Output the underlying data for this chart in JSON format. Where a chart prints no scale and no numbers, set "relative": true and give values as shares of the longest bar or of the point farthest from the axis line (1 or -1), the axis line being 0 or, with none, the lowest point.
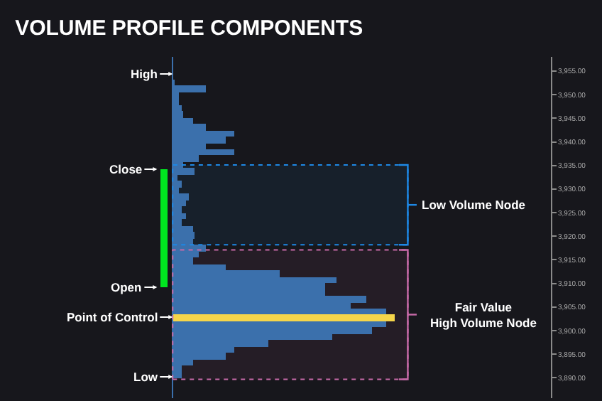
{
  "chart_data": {
    "type": "bar",
    "orientation": "horizontal",
    "relative": true,
    "title": "VOLUME PROFILE COMPONENTS",
    "x": [
      3952.6,
      3951.25,
      3949.9,
      3948.55,
      3947.2,
      3945.85,
      3944.5,
      3943.15,
      3941.8,
      3940.45,
      3939.1,
      3937.75,
      3936.4,
      3935.05,
      3933.7,
      3932.35,
      3931,
      3929.65,
      3928.3,
      3926.95,
      3925.6,
      3924.25,
      3922.9,
      3921.55,
      3920.2,
      3918.85,
      3917.5,
      3916.15,
      3914.8,
      3913.45,
      3912.1,
      3910.75,
      3909.4,
      3908.05,
      3906.7,
      3905.35,
      3904,
      3902.65,
      3901.3,
      3899.95,
      3898.6,
      3897.25,
      3895.9,
      3894.55,
      3893.2,
      3891.85,
      3890.5
    ],
    "values": [
      0.01,
      0.15,
      0.03,
      0.03,
      0.04,
      0.05,
      0.09,
      0.15,
      0.28,
      0.24,
      0.15,
      0.28,
      0.12,
      0.05,
      0.1,
      0.02,
      0.04,
      0.03,
      0.07,
      0.06,
      0.04,
      0.06,
      0.04,
      0.09,
      0.1,
      0.09,
      0.15,
      0.12,
      0.09,
      0.24,
      0.48,
      0.74,
      0.69,
      0.69,
      0.87,
      0.8,
      0.96,
      1,
      0.96,
      0.9,
      0.72,
      0.43,
      0.28,
      0.24,
      0.09,
      0.04,
      0.04
    ],
    "colors": [
      "#3b70ac",
      "#3b70ac",
      "#3b70ac",
      "#3b70ac",
      "#3b70ac",
      "#3b70ac",
      "#3b70ac",
      "#3b70ac",
      "#3b70ac",
      "#3b70ac",
      "#3b70ac",
      "#3b70ac",
      "#3b70ac",
      "#3b70ac",
      "#3b70ac",
      "#3b70ac",
      "#3b70ac",
      "#3b70ac",
      "#3b70ac",
      "#3b70ac",
      "#3b70ac",
      "#3b70ac",
      "#3b70ac",
      "#3b70ac",
      "#3b70ac",
      "#3b70ac",
      "#3b70ac",
      "#3b70ac",
      "#3b70ac",
      "#3b70ac",
      "#3b70ac",
      "#3b70ac",
      "#3b70ac",
      "#3b70ac",
      "#3b70ac",
      "#3b70ac",
      "#3b70ac",
      "#f5d54a",
      "#3b70ac",
      "#3b70ac",
      "#3b70ac",
      "#3b70ac",
      "#3b70ac",
      "#3b70ac",
      "#3b70ac",
      "#3b70ac",
      "#3b70ac"
    ],
    "ylim": [
      3885.7,
      3958
    ],
    "yticks": [
      {
        "value": 3955,
        "label": "3,955.00"
      },
      {
        "value": 3950,
        "label": "3,950.00"
      },
      {
        "value": 3945,
        "label": "3,945.00"
      },
      {
        "value": 3940,
        "label": "3,940.00"
      },
      {
        "value": 3935,
        "label": "3,935.00"
      },
      {
        "value": 3930,
        "label": "3,930.00"
      },
      {
        "value": 3925,
        "label": "3,925.00"
      },
      {
        "value": 3920,
        "label": "3,920.00"
      },
      {
        "value": 3915,
        "label": "3,915.00"
      },
      {
        "value": 3910,
        "label": "3,910.00"
      },
      {
        "value": 3905,
        "label": "3,905.00"
      },
      {
        "value": 3900,
        "label": "3,900.00"
      },
      {
        "value": 3895,
        "label": "3,895.00"
      },
      {
        "value": 3890,
        "label": "3,890.00"
      }
    ],
    "bands": [
      {
        "axis": "y",
        "from": 3918.2,
        "to": 3935.1,
        "label": "Low Volume Node",
        "color": "#1e88e5"
      },
      {
        "axis": "y",
        "from": 3889.7,
        "to": 3917.1,
        "label": "Fair Value\nHigh Volume Node",
        "color": "#c76aa8"
      }
    ],
    "annotations": [
      "High",
      "Close",
      "Open",
      "Point of Control",
      "Low"
    ],
    "grid": false
  }
}
